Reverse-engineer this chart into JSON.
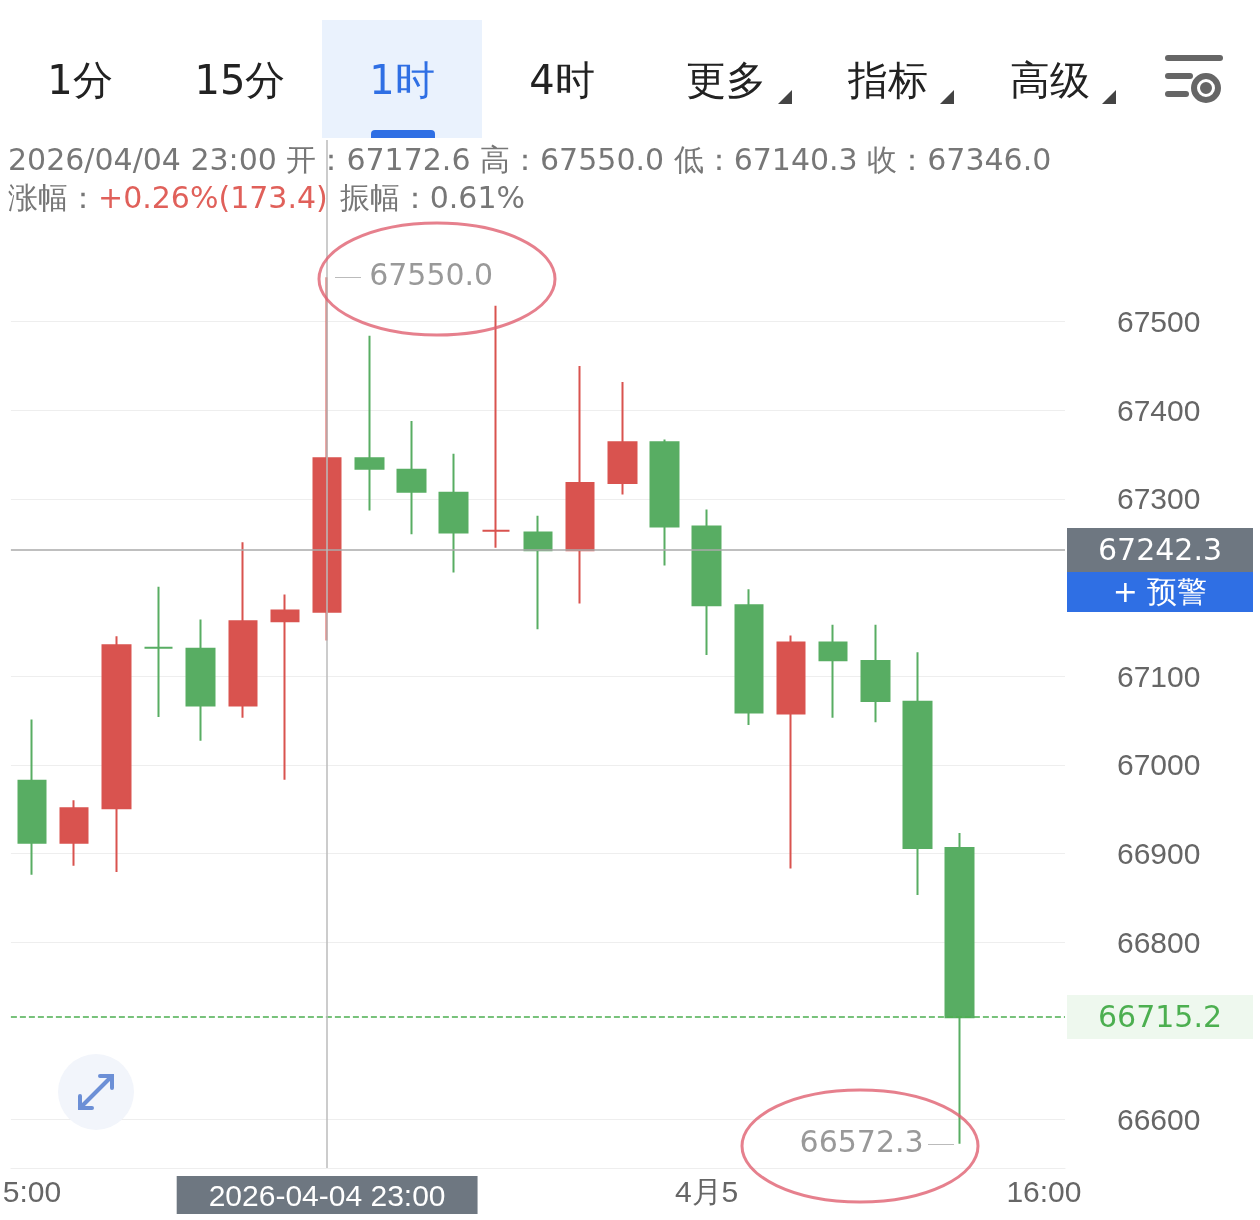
{
  "chart_data": {
    "type": "candlestick",
    "categories": [
      "5:00",
      null,
      null,
      null,
      null,
      null,
      null,
      "2026-04-04 23:00",
      null,
      null,
      null,
      null,
      null,
      null,
      null,
      null,
      "4月5",
      null,
      null,
      null,
      null,
      null,
      null,
      null,
      "16:00"
    ],
    "ohlc": [
      [
        66982,
        67051,
        66876,
        66912
      ],
      [
        66912,
        66960,
        66886,
        66951
      ],
      [
        66951,
        67145,
        66879,
        67135
      ],
      [
        67132,
        67201,
        67054,
        67132
      ],
      [
        67131,
        67164,
        67027,
        67067
      ],
      [
        67067,
        67251,
        67053,
        67162
      ],
      [
        67162,
        67192,
        66983,
        67174
      ],
      [
        67172.6,
        67550.0,
        67140.3,
        67346.0
      ],
      [
        67346,
        67484,
        67287,
        67334
      ],
      [
        67333,
        67388,
        67260,
        67308
      ],
      [
        67307,
        67351,
        67217,
        67262
      ],
      [
        67264,
        67518,
        67245,
        67264
      ],
      [
        67262,
        67281,
        67153,
        67242
      ],
      [
        67242,
        67450,
        67182,
        67318
      ],
      [
        67318,
        67432,
        67305,
        67364
      ],
      [
        67364,
        67367,
        67225,
        67269
      ],
      [
        67269,
        67288,
        67124,
        67180
      ],
      [
        67180,
        67198,
        67045,
        67059
      ],
      [
        67058,
        67146,
        66883,
        67138
      ],
      [
        67138,
        67158,
        67053,
        67118
      ],
      [
        67117,
        67158,
        67048,
        67072
      ],
      [
        67071,
        67127,
        66853,
        66906
      ],
      [
        66906,
        66923,
        66572.3,
        66715.2
      ],
      null,
      null
    ],
    "colors": [
      "#58ad63",
      "#d9534f",
      "#d9534f",
      "#58ad63",
      "#58ad63",
      "#d9534f",
      "#d9534f",
      "#d9534f",
      "#58ad63",
      "#58ad63",
      "#58ad63",
      "#d9534f",
      "#58ad63",
      "#d9534f",
      "#d9534f",
      "#58ad63",
      "#58ad63",
      "#58ad63",
      "#d9534f",
      "#58ad63",
      "#58ad63",
      "#58ad63",
      "#58ad63",
      null,
      null
    ],
    "ylim": [
      66545,
      67705
    ],
    "yticks": [
      66600,
      66800,
      66900,
      67000,
      67100,
      67300,
      67400,
      67500
    ],
    "grid": "y",
    "ref_lines": [
      {
        "axis": "y",
        "value": 67242.3,
        "label": "67242.3",
        "color": "#aaaaaa",
        "line_style": "solid"
      },
      {
        "axis": "y",
        "value": 66715.2,
        "label": "66715.2",
        "color": "#4caf50",
        "line_style": "dashed"
      },
      {
        "axis": "x",
        "value": "2026-04-04 23:00",
        "color": "#bbbbbb",
        "line_style": "solid"
      }
    ],
    "annotations": [
      "1分",
      "15分",
      "1时",
      "4时",
      "更多",
      "指标",
      "高级",
      "2026/04/04 23:00 开：67172.6 高：67550.0 低：67140.3 收：67346.0",
      "涨幅：",
      "+0.26%(173.4)",
      "振幅：0.61%",
      "+ 预警",
      {
        "text": "67550.0",
        "x": "2026-04-04 23:00",
        "y": 67550.0
      },
      "66572.3"
    ]
  }
}
